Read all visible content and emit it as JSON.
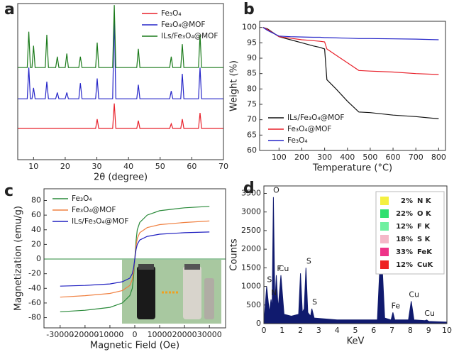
{
  "chart_data": [
    {
      "type": "line",
      "panel": "a",
      "xlabel": "2θ (degree)",
      "x": [
        5,
        8,
        8.5,
        9,
        9.5,
        10,
        10.5,
        13.7,
        14.2,
        14.7,
        17,
        17.5,
        18,
        20,
        20.5,
        21,
        24.3,
        24.8,
        25.3,
        29.6,
        30.1,
        30.6,
        35,
        35.5,
        36,
        42.6,
        43.1,
        43.6,
        53,
        53.5,
        54,
        56.5,
        57,
        57.5,
        62.1,
        62.6,
        63.1,
        70
      ],
      "xlim": [
        5,
        70
      ],
      "xticks": [
        10,
        20,
        30,
        40,
        50,
        60,
        70
      ],
      "ylim": [
        0,
        10
      ],
      "legend": "upper right",
      "series": [
        {
          "name": "Fe₃O₄",
          "color": "#e8202a",
          "values": [
            2.0,
            2.0,
            2.0,
            2.0,
            2.0,
            2.0,
            2.0,
            2.0,
            2.0,
            2.0,
            2.0,
            2.0,
            2.0,
            2.0,
            2.0,
            2.0,
            2.0,
            2.0,
            2.0,
            2.0,
            2.6,
            2.0,
            2.0,
            3.6,
            2.0,
            2.0,
            2.5,
            2.0,
            2.0,
            2.3,
            2.0,
            2.0,
            2.6,
            2.0,
            2.0,
            3.0,
            2.0,
            2.0
          ]
        },
        {
          "name": "Fe₃O₄@MOF",
          "color": "#2626c8",
          "values": [
            3.9,
            3.9,
            5.9,
            3.9,
            3.9,
            4.6,
            3.9,
            3.9,
            5.0,
            3.9,
            3.9,
            4.3,
            3.9,
            3.9,
            4.3,
            3.9,
            3.9,
            4.9,
            3.9,
            3.9,
            5.2,
            3.9,
            3.9,
            9.2,
            3.9,
            3.9,
            4.8,
            3.9,
            3.9,
            4.4,
            3.9,
            3.9,
            5.5,
            3.9,
            3.9,
            5.9,
            3.9,
            3.9
          ]
        },
        {
          "name": "ILs/Fe₃O₄@MOF",
          "color": "#1a7a1a",
          "values": [
            5.9,
            5.9,
            8.2,
            5.9,
            5.9,
            7.3,
            5.9,
            5.9,
            8.0,
            5.9,
            5.9,
            6.6,
            5.9,
            5.9,
            6.8,
            5.9,
            5.9,
            6.6,
            5.9,
            5.9,
            7.5,
            5.9,
            5.9,
            9.9,
            5.9,
            5.9,
            7.1,
            5.9,
            5.9,
            6.6,
            5.9,
            5.9,
            7.4,
            5.9,
            5.9,
            8.0,
            5.9,
            5.9
          ]
        }
      ]
    },
    {
      "type": "line",
      "panel": "b",
      "xlabel": "Temperature (°C)",
      "ylabel": "Weight (%)",
      "x": [
        30,
        50,
        100,
        150,
        200,
        250,
        280,
        300,
        310,
        350,
        400,
        450,
        500,
        600,
        700,
        800
      ],
      "xlim": [
        15,
        830
      ],
      "xticks": [
        100,
        200,
        300,
        400,
        500,
        600,
        700,
        800
      ],
      "ylim": [
        60,
        102
      ],
      "yticks": [
        60,
        65,
        70,
        75,
        80,
        85,
        90,
        95,
        100
      ],
      "legend": "lower left",
      "series": [
        {
          "name": "ILs/Fe₃O₄@MOF",
          "color": "#111111",
          "values": [
            100,
            99.5,
            97,
            96,
            95,
            94,
            93.5,
            93,
            83,
            80,
            76,
            72.5,
            72.3,
            71.5,
            71,
            70.3
          ]
        },
        {
          "name": "Fe₃O₄@MOF",
          "color": "#e8202a",
          "values": [
            100,
            99.3,
            97,
            96.5,
            96,
            95.7,
            95.5,
            95.3,
            93,
            91,
            88.5,
            86,
            85.8,
            85.5,
            85,
            84.7
          ]
        },
        {
          "name": "Fe₃O₄",
          "color": "#2626c8",
          "values": [
            100,
            99,
            97.2,
            97,
            96.9,
            96.8,
            96.8,
            96.7,
            96.7,
            96.6,
            96.5,
            96.4,
            96.4,
            96.3,
            96.2,
            96
          ]
        }
      ]
    },
    {
      "type": "line",
      "panel": "c",
      "xlabel": "Magnetic Field (Oe)",
      "ylabel": "Magnetization (emu/g)",
      "x": [
        -30000,
        -20000,
        -10000,
        -5000,
        -2000,
        -1000,
        -500,
        0,
        500,
        1000,
        2000,
        5000,
        10000,
        20000,
        30000
      ],
      "xlim": [
        -36500,
        36500
      ],
      "xticks": [
        -30000,
        -20000,
        -10000,
        0,
        10000,
        20000,
        30000
      ],
      "ylim": [
        -94,
        96
      ],
      "yticks": [
        -80,
        -60,
        -40,
        -20,
        0,
        20,
        40,
        60,
        80
      ],
      "legend": "upper left",
      "series": [
        {
          "name": "Fe₃O₄",
          "color": "#2a8a3a",
          "values": [
            -72,
            -70,
            -66,
            -60,
            -50,
            -40,
            -25,
            0,
            25,
            40,
            50,
            60,
            66,
            70,
            72
          ]
        },
        {
          "name": "Fe₃O₄@MOF",
          "color": "#f08040",
          "values": [
            -52,
            -50,
            -47,
            -43,
            -36,
            -28,
            -18,
            0,
            18,
            28,
            36,
            43,
            47,
            50,
            52
          ]
        },
        {
          "name": "ILs/Fe₃O₄@MOF",
          "color": "#2020c0",
          "values": [
            -37,
            -36,
            -34,
            -31,
            -26,
            -20,
            -13,
            0,
            13,
            20,
            26,
            31,
            34,
            36,
            37
          ]
        }
      ]
    },
    {
      "type": "area",
      "panel": "d",
      "xlabel": "KeV",
      "ylabel": "Counts",
      "color": "#101a6e",
      "x": [
        0,
        0.15,
        0.3,
        0.39,
        0.45,
        0.52,
        0.6,
        0.68,
        0.78,
        0.93,
        1.1,
        1.5,
        1.9,
        2.0,
        2.1,
        2.2,
        2.3,
        2.4,
        2.55,
        2.62,
        2.75,
        4,
        6.2,
        6.4,
        6.6,
        6.95,
        7.05,
        7.15,
        7.9,
        8.05,
        8.2,
        8.8,
        8.9,
        9.0,
        10
      ],
      "values": [
        0,
        1000,
        300,
        650,
        400,
        3400,
        500,
        1300,
        400,
        1300,
        250,
        200,
        250,
        1350,
        300,
        400,
        1500,
        300,
        200,
        400,
        150,
        100,
        100,
        2200,
        150,
        100,
        300,
        100,
        100,
        600,
        100,
        80,
        100,
        60,
        40
      ],
      "xlim": [
        0,
        10
      ],
      "xticks": [
        0,
        1,
        2,
        3,
        4,
        5,
        6,
        7,
        8,
        9,
        10
      ],
      "ylim": [
        0,
        3700
      ],
      "yticks": [
        0,
        500,
        1000,
        1500,
        2000,
        2500,
        3000,
        3500
      ],
      "annotations": [
        {
          "text": "S",
          "x": 0.15,
          "y": 1000
        },
        {
          "text": "N",
          "x": 0.39,
          "y": 650,
          "color": "#e02020"
        },
        {
          "text": "O",
          "x": 0.52,
          "y": 3400
        },
        {
          "text": "F",
          "x": 0.68,
          "y": 1300
        },
        {
          "text": "Cu",
          "x": 0.93,
          "y": 1300
        },
        {
          "text": "S",
          "x": 2.3,
          "y": 1500
        },
        {
          "text": "S",
          "x": 2.62,
          "y": 400
        },
        {
          "text": "Fe",
          "x": 6.4,
          "y": 2200
        },
        {
          "text": "Fe",
          "x": 7.05,
          "y": 300
        },
        {
          "text": "Cu",
          "x": 8.05,
          "y": 600
        },
        {
          "text": "Cu",
          "x": 8.9,
          "y": 100
        }
      ],
      "composition": {
        "labels": [
          "N K",
          "O K",
          "F K",
          "S K",
          "FeK",
          "CuK"
        ],
        "values": [
          2,
          22,
          12,
          18,
          33,
          12
        ],
        "value_labels": [
          "2%",
          "22%",
          "12%",
          "18%",
          "33%",
          "12%"
        ],
        "colors": [
          "#f4f040",
          "#30e070",
          "#70f0a0",
          "#f4b8c8",
          "#ee3388",
          "#ee2222"
        ]
      }
    }
  ]
}
